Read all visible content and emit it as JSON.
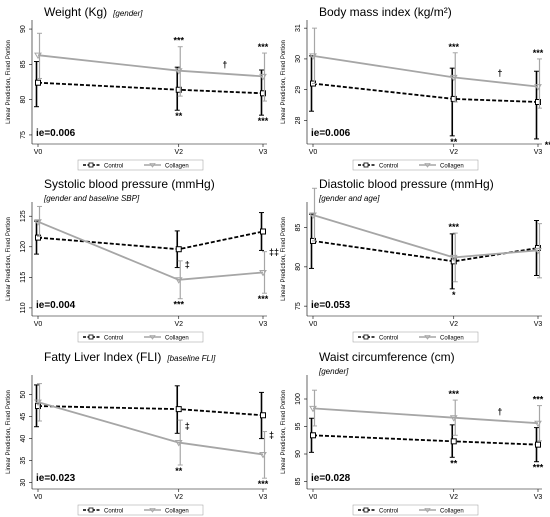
{
  "chart_data": [
    {
      "type": "line",
      "title": "Weight (Kg)",
      "subtitle": "[gender]",
      "ylabel": "Linear Prediction, Fixed Portion",
      "x": [
        "V0",
        "V2",
        "V3"
      ],
      "ylim": [
        74,
        91
      ],
      "yticks": [
        "75",
        "80",
        "85",
        "90"
      ],
      "series": [
        {
          "name": "Control",
          "values": [
            82.4,
            81.4,
            80.9
          ],
          "err_low": [
            79.0,
            78.5,
            77.8
          ],
          "err_high": [
            85.4,
            84.6,
            84.2
          ]
        },
        {
          "name": "Collagen",
          "values": [
            86.3,
            84.1,
            83.3
          ],
          "err_low": [
            83.0,
            80.5,
            79.8
          ],
          "err_high": [
            89.4,
            87.5,
            86.6
          ]
        }
      ],
      "annotations_top": {
        "V0": "",
        "V2": "***",
        "V3": "***"
      },
      "annotations_bottom": {
        "V0": "",
        "V2": "**",
        "V3": "***"
      },
      "dagger": "†",
      "ie": "ie=0.006"
    },
    {
      "type": "line",
      "title": "Body mass index (kg/m²)",
      "subtitle": "",
      "ylabel": "Linear Prediction, Fixed Portion",
      "x": [
        "V0",
        "V2",
        "V3"
      ],
      "ylim": [
        27.3,
        31.2
      ],
      "yticks": [
        "28",
        "29",
        "30",
        "31"
      ],
      "series": [
        {
          "name": "Control",
          "values": [
            29.2,
            28.7,
            28.6
          ],
          "err_low": [
            28.3,
            27.5,
            27.4
          ],
          "err_high": [
            30.1,
            29.7,
            29.6
          ]
        },
        {
          "name": "Collagen",
          "values": [
            30.1,
            29.4,
            29.1
          ],
          "err_low": [
            29.2,
            28.6,
            28.4
          ],
          "err_high": [
            31.0,
            30.2,
            30.0
          ]
        }
      ],
      "annotations_top": {
        "V0": "",
        "V2": "***",
        "V3": "***"
      },
      "annotations_bottom": {
        "V0": "",
        "V2": "**",
        "V3": "***"
      },
      "dagger": "†",
      "ie": "ie=0.006"
    },
    {
      "type": "line",
      "title": "Systolic blood pressure (mmHg)",
      "subtitle": "[gender and baseline SBP]",
      "ylabel": "Linear Prediction, Fixed Portion",
      "x": [
        "V0",
        "V2",
        "V3"
      ],
      "ylim": [
        109,
        127
      ],
      "yticks": [
        "110",
        "115",
        "120",
        "125"
      ],
      "series": [
        {
          "name": "Control",
          "values": [
            121.5,
            119.6,
            122.5
          ],
          "err_low": [
            118.8,
            116.6,
            119.4
          ],
          "err_high": [
            124.2,
            122.6,
            125.6
          ]
        },
        {
          "name": "Collagen",
          "values": [
            124.1,
            114.6,
            115.8
          ],
          "err_low": [
            121.7,
            111.5,
            112.4
          ],
          "err_high": [
            126.6,
            117.7,
            119.2
          ]
        }
      ],
      "annotations_top": {
        "V0": "",
        "V2": "",
        "V3": ""
      },
      "annotations_bottom": {
        "V0": "",
        "V2": "***",
        "V3": "***"
      },
      "mid_marks": {
        "V2": "‡",
        "V3": "‡‡"
      },
      "ie": "ie=0.004"
    },
    {
      "type": "line",
      "title": "Diastolic blood pressure (mmHg)",
      "subtitle": "[gender and age]",
      "ylabel": "Linear Prediction, Fixed Portion",
      "x": [
        "V0",
        "V2",
        "V3"
      ],
      "ylim": [
        74,
        88
      ],
      "yticks": [
        "75",
        "80",
        "85"
      ],
      "series": [
        {
          "name": "Control",
          "values": [
            83.3,
            80.7,
            82.4
          ],
          "err_low": [
            79.8,
            77.2,
            78.9
          ],
          "err_high": [
            86.7,
            84.2,
            85.9
          ]
        },
        {
          "name": "Collagen",
          "values": [
            86.6,
            81.2,
            82.1
          ],
          "err_low": [
            83.3,
            78.1,
            78.6
          ],
          "err_high": [
            90.0,
            84.3,
            85.5
          ]
        }
      ],
      "annotations_top": {
        "V0": "",
        "V2": "***",
        "V3": ""
      },
      "annotations_bottom": {
        "V0": "",
        "V2": "*",
        "V3": ""
      },
      "ie": "ie=0.053"
    },
    {
      "type": "line",
      "title": "Fatty Liver Index (FLI)",
      "subtitle": "[baseline FLI]",
      "ylabel": "Linear Prediction, Fixed Portion",
      "x": [
        "V0",
        "V2",
        "V3"
      ],
      "ylim": [
        29,
        54
      ],
      "yticks": [
        "30",
        "35",
        "40",
        "45",
        "50"
      ],
      "series": [
        {
          "name": "Control",
          "values": [
            47.4,
            46.7,
            45.3
          ],
          "err_low": [
            42.7,
            41.2,
            40.0
          ],
          "err_high": [
            52.2,
            52.0,
            50.5
          ]
        },
        {
          "name": "Collagen",
          "values": [
            48.3,
            39.1,
            36.4
          ],
          "err_low": [
            44.0,
            34.0,
            31.0
          ],
          "err_high": [
            52.5,
            44.2,
            41.6
          ]
        }
      ],
      "annotations_top": {
        "V0": "",
        "V2": "",
        "V3": ""
      },
      "annotations_bottom": {
        "V0": "",
        "V2": "**",
        "V3": "***"
      },
      "mid_marks": {
        "V2": "‡",
        "V3": "‡"
      },
      "ie": "ie=0.023"
    },
    {
      "type": "line",
      "title": "Waist circumference (cm)",
      "subtitle": "[gender]",
      "ylabel": "Linear Prediction, Fixed Portion",
      "x": [
        "V0",
        "V2",
        "V3"
      ],
      "ylim": [
        84,
        104
      ],
      "yticks": [
        "85",
        "90",
        "95",
        "100"
      ],
      "series": [
        {
          "name": "Control",
          "values": [
            93.4,
            92.3,
            91.7
          ],
          "err_low": [
            90.3,
            89.4,
            88.6
          ],
          "err_high": [
            96.5,
            95.3,
            94.8
          ]
        },
        {
          "name": "Collagen",
          "values": [
            98.3,
            96.6,
            95.6
          ],
          "err_low": [
            95.1,
            93.4,
            92.4
          ],
          "err_high": [
            101.6,
            99.8,
            98.8
          ]
        }
      ],
      "annotations_top": {
        "V0": "",
        "V2": "***",
        "V3": "***"
      },
      "annotations_bottom": {
        "V0": "",
        "V2": "**",
        "V3": "***"
      },
      "dagger": "†",
      "ie": "ie=0.028"
    }
  ],
  "colors": {
    "control": "#000000",
    "collagen": "#a6a6a6",
    "control_err": "#000000",
    "collagen_err": "#a6a6a6"
  },
  "legend": {
    "control": "Control",
    "collagen": "Collagen"
  }
}
